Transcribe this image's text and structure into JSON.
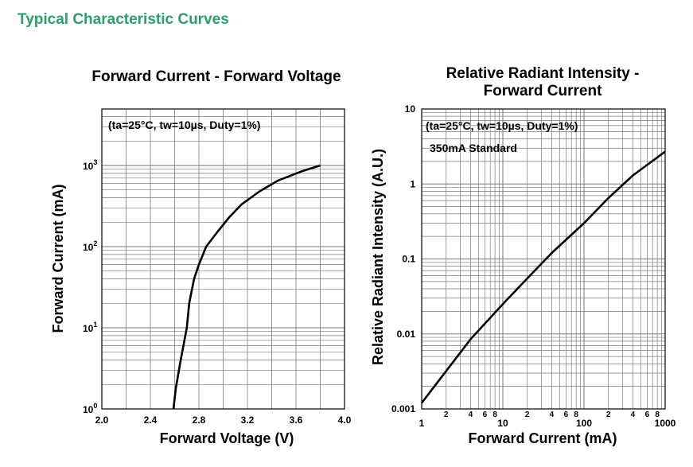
{
  "page_title": "Typical Characteristic Curves",
  "colors": {
    "title_green": "#2e9e6a",
    "grid": "#7a7a7a",
    "curve": "#000000"
  },
  "chart_data": [
    {
      "type": "line",
      "title": "Forward Current - Forward Voltage",
      "xlabel": "Forward Voltage (V)",
      "ylabel": "Forward Current (mA)",
      "x_scale": "linear",
      "y_scale": "log",
      "xlim": [
        2.0,
        4.0
      ],
      "ylim": [
        1,
        5000
      ],
      "x_ticks": [
        "2.0",
        "2.4",
        "2.8",
        "3.2",
        "3.6",
        "4.0"
      ],
      "y_tick_labels": [
        {
          "value": 1,
          "base": "10",
          "exp": "0"
        },
        {
          "value": 10,
          "base": "10",
          "exp": "1"
        },
        {
          "value": 100,
          "base": "10",
          "exp": "2"
        },
        {
          "value": 1000,
          "base": "10",
          "exp": "3"
        }
      ],
      "annotation": "(ta=25°C, tw=10µs, Duty=1%)",
      "grid": true,
      "series": [
        {
          "x": [
            2.59,
            2.61,
            2.65,
            2.7,
            2.72,
            2.76,
            2.8,
            2.86,
            2.95,
            3.05,
            3.15,
            3.3,
            3.45,
            3.65,
            3.8
          ],
          "y": [
            1,
            1.8,
            4,
            10,
            20,
            40,
            60,
            100,
            150,
            230,
            330,
            480,
            650,
            850,
            1000
          ]
        }
      ]
    },
    {
      "type": "line",
      "title": "Relative Radiant Intensity - Forward Current",
      "title_lines": [
        "Relative Radiant Intensity -",
        "Forward Current"
      ],
      "xlabel": "Forward Current (mA)",
      "ylabel": "Relative Radiant Intensity (A.U.)",
      "x_scale": "log",
      "y_scale": "log",
      "xlim": [
        1,
        1000
      ],
      "ylim": [
        0.001,
        10
      ],
      "x_ticks": [
        "1",
        "10",
        "100",
        "1000"
      ],
      "x_minor_labels": [
        "2",
        "4",
        "6",
        "8"
      ],
      "y_ticks": [
        "0.001",
        "0.01",
        "0.1",
        "1",
        "10"
      ],
      "annotations": [
        "(ta=25°C, tw=10µs, Duty=1%)",
        "350mA Standard"
      ],
      "grid": true,
      "series": [
        {
          "x": [
            1,
            2,
            4,
            10,
            20,
            40,
            100,
            200,
            400,
            1000
          ],
          "y": [
            0.0012,
            0.0032,
            0.0085,
            0.025,
            0.055,
            0.12,
            0.3,
            0.65,
            1.3,
            2.7
          ]
        }
      ]
    }
  ]
}
